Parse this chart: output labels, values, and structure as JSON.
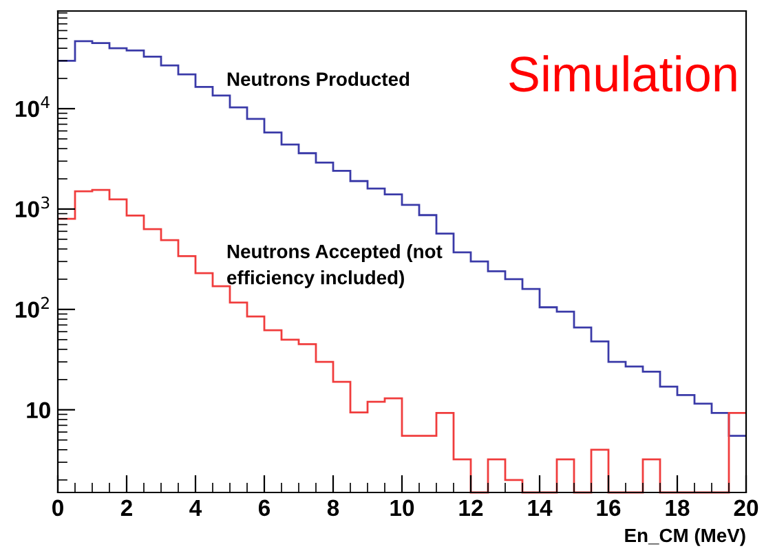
{
  "chart_data": {
    "type": "histogram",
    "xlabel": "En_CM (MeV)",
    "bins": [
      0,
      0.5,
      1,
      1.5,
      2,
      2.5,
      3,
      3.5,
      4,
      4.5,
      5,
      5.5,
      6,
      6.5,
      7,
      7.5,
      8,
      8.5,
      9,
      9.5,
      10,
      10.5,
      11,
      11.5,
      12,
      12.5,
      13,
      13.5,
      14,
      14.5,
      15,
      15.5,
      16,
      16.5,
      17,
      17.5,
      18,
      18.5,
      19,
      19.5,
      20
    ],
    "series": [
      {
        "color": "#3a3aa8",
        "values": [
          30000,
          47000,
          45000,
          40000,
          38000,
          33000,
          27000,
          22000,
          16500,
          13500,
          10300,
          7900,
          5800,
          4400,
          3600,
          2900,
          2400,
          1900,
          1600,
          1400,
          1100,
          870,
          570,
          370,
          300,
          240,
          200,
          160,
          105,
          95,
          66,
          48,
          30,
          27,
          24,
          17,
          14,
          11.5,
          9.3,
          5.5
        ]
      },
      {
        "color": "#f03c3c",
        "values": [
          800,
          1500,
          1550,
          1250,
          860,
          630,
          490,
          340,
          230,
          170,
          117,
          85,
          62,
          50,
          45,
          30,
          19,
          9.4,
          12,
          13,
          5.5,
          5.5,
          9.3,
          3.2,
          null,
          3.2,
          2,
          null,
          null,
          3.2,
          null,
          4,
          null,
          null,
          3.2,
          null,
          null,
          null,
          null,
          9.3
        ]
      }
    ],
    "log": "y",
    "xlim": [
      0,
      20
    ],
    "ylim": [
      1.5,
      94000
    ],
    "xticks": [
      0,
      2,
      4,
      6,
      8,
      10,
      12,
      14,
      16,
      18,
      20
    ],
    "yticks": [
      10,
      {
        "value": 100,
        "label": "10$^{2}$"
      },
      {
        "value": 1000,
        "label": "10$^{3}$"
      },
      {
        "value": 10000,
        "label": "10$^{4}$"
      }
    ],
    "annotations": [
      "Neutrons Producted",
      "Neutrons Accepted (not\nefficiency included)",
      "Simulation"
    ],
    "grid": false,
    "legend": false
  }
}
